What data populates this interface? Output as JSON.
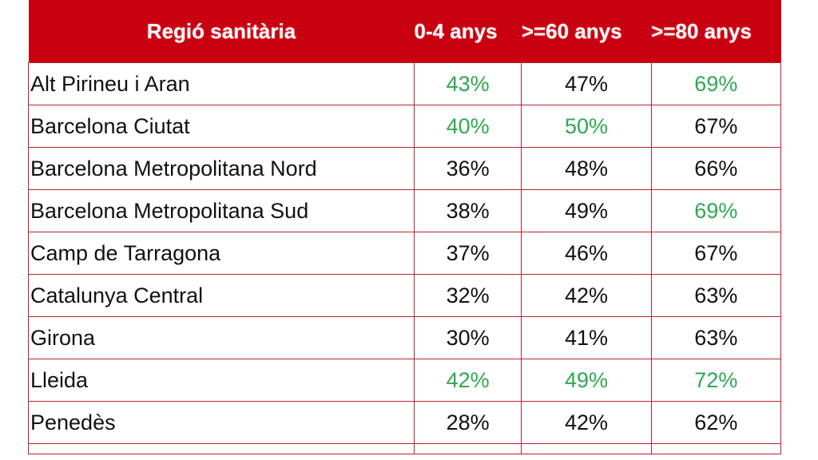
{
  "chart_data": {
    "type": "table",
    "columns": [
      "Regió sanitària",
      "0-4 anys",
      ">=60 anys",
      ">=80 anys"
    ],
    "rows": [
      {
        "region": "Alt Pirineu i Aran",
        "values": [
          "43%",
          "47%",
          "69%"
        ],
        "highlight": [
          true,
          false,
          true
        ]
      },
      {
        "region": "Barcelona Ciutat",
        "values": [
          "40%",
          "50%",
          "67%"
        ],
        "highlight": [
          true,
          true,
          false
        ]
      },
      {
        "region": "Barcelona Metropolitana Nord",
        "values": [
          "36%",
          "48%",
          "66%"
        ],
        "highlight": [
          false,
          false,
          false
        ]
      },
      {
        "region": "Barcelona Metropolitana Sud",
        "values": [
          "38%",
          "49%",
          "69%"
        ],
        "highlight": [
          false,
          false,
          true
        ]
      },
      {
        "region": "Camp de Tarragona",
        "values": [
          "37%",
          "46%",
          "67%"
        ],
        "highlight": [
          false,
          false,
          false
        ]
      },
      {
        "region": "Catalunya Central",
        "values": [
          "32%",
          "42%",
          "63%"
        ],
        "highlight": [
          false,
          false,
          false
        ]
      },
      {
        "region": "Girona",
        "values": [
          "30%",
          "41%",
          "63%"
        ],
        "highlight": [
          false,
          false,
          false
        ]
      },
      {
        "region": "Lleida",
        "values": [
          "42%",
          "49%",
          "72%"
        ],
        "highlight": [
          true,
          true,
          true
        ]
      },
      {
        "region": "Penedès",
        "values": [
          "28%",
          "42%",
          "62%"
        ],
        "highlight": [
          false,
          false,
          false
        ]
      }
    ],
    "colors": {
      "header_bg": "#c8000f",
      "header_text": "#ffffff",
      "highlight": "#2ea84f",
      "border": "#b8232f"
    }
  }
}
